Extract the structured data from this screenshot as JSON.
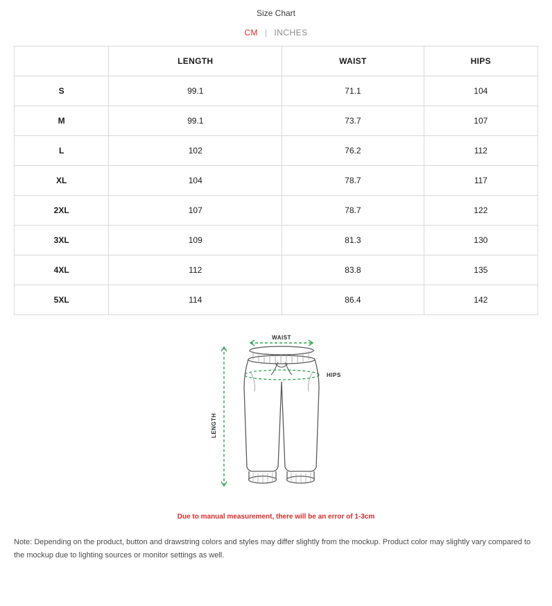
{
  "title": "Size Chart",
  "units": {
    "cm": "CM",
    "separator": "|",
    "inches": "INCHES",
    "active": "cm"
  },
  "table": {
    "columns": [
      "",
      "LENGTH",
      "WAIST",
      "HIPS"
    ],
    "rows": [
      [
        "S",
        "99.1",
        "71.1",
        "104"
      ],
      [
        "M",
        "99.1",
        "73.7",
        "107"
      ],
      [
        "L",
        "102",
        "76.2",
        "112"
      ],
      [
        "XL",
        "104",
        "78.7",
        "117"
      ],
      [
        "2XL",
        "107",
        "78.7",
        "122"
      ],
      [
        "3XL",
        "109",
        "81.3",
        "130"
      ],
      [
        "4XL",
        "112",
        "83.8",
        "135"
      ],
      [
        "5XL",
        "114",
        "86.4",
        "142"
      ]
    ],
    "border_color": "#d9d9d9",
    "header_fontweight": 700
  },
  "diagram": {
    "waist_label": "WAIST",
    "hips_label": "HIPS",
    "length_label": "LENGTH",
    "arrow_color": "#2fa84f",
    "outline_color": "#5a5a5a",
    "hatch_color": "#9b9b9b"
  },
  "warning": "Due to manual measurement, there will be an error of 1-3cm",
  "note": "Note: Depending on the product, button and drawstring colors and styles may differ slightly from the mockup. Product color may slightly vary compared to the mockup due to lighting sources or monitor settings as well.",
  "colors": {
    "accent_red": "#d92c2c",
    "text": "#1a1a1a",
    "muted": "#8a8a8a",
    "border": "#d9d9d9",
    "background": "#ffffff"
  }
}
